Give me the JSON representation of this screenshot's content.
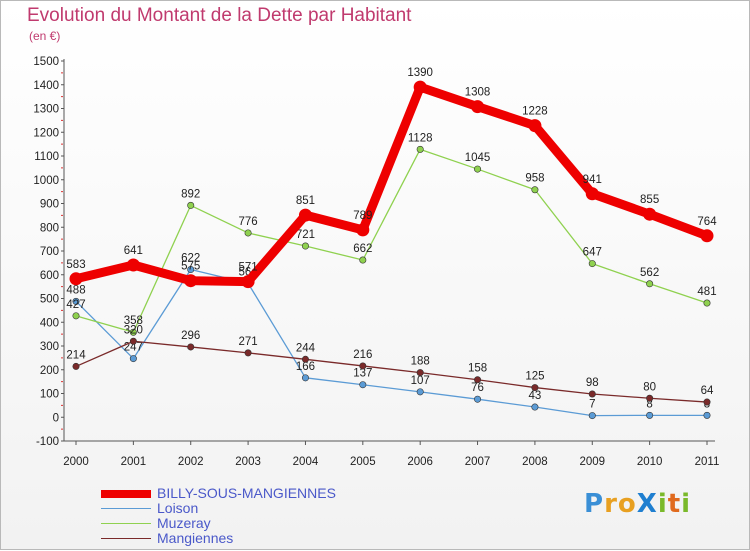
{
  "title": "Evolution du Montant de la Dette par Habitant",
  "unit_label": "(en €)",
  "logo": {
    "text": "ProXiti",
    "letters": [
      {
        "ch": "P",
        "color": "#3a8fd6"
      },
      {
        "ch": "r",
        "color": "#e8a021"
      },
      {
        "ch": "o",
        "color": "#e8a021"
      },
      {
        "ch": "X",
        "color": "#1f7fd0"
      },
      {
        "ch": "i",
        "color": "#7ab92a"
      },
      {
        "ch": "t",
        "color": "#e06a1e"
      },
      {
        "ch": "i",
        "color": "#7ab92a"
      }
    ]
  },
  "chart_data": {
    "type": "line",
    "title": "Evolution du Montant de la Dette par Habitant",
    "ylabel": "(en €)",
    "xlabel": "",
    "x": [
      "2000",
      "2001",
      "2002",
      "2003",
      "2004",
      "2005",
      "2006",
      "2007",
      "2008",
      "2009",
      "2010",
      "2011"
    ],
    "ylim": [
      -100,
      1500
    ],
    "yticks": [
      -100,
      0,
      100,
      200,
      300,
      400,
      500,
      600,
      700,
      800,
      900,
      1000,
      1100,
      1200,
      1300,
      1400,
      1500
    ],
    "grid": false,
    "legend_position": "bottom-left",
    "series": [
      {
        "name": "BILLY-SOUS-MANGIENNES",
        "color": "#ee0000",
        "bold": true,
        "values": [
          583,
          641,
          575,
          571,
          851,
          789,
          1390,
          1308,
          1228,
          941,
          855,
          764
        ]
      },
      {
        "name": "Loison",
        "color": "#5b9bd5",
        "bold": false,
        "values": [
          488,
          247,
          622,
          564,
          166,
          137,
          107,
          76,
          43,
          7,
          8,
          8
        ]
      },
      {
        "name": "Muzeray",
        "color": "#8fd14f",
        "bold": false,
        "values": [
          427,
          358,
          892,
          776,
          721,
          662,
          1128,
          1045,
          958,
          647,
          562,
          481
        ]
      },
      {
        "name": "Mangiennes",
        "color": "#7a2a2a",
        "bold": false,
        "values": [
          214,
          320,
          296,
          271,
          244,
          216,
          188,
          158,
          125,
          98,
          80,
          64
        ]
      }
    ]
  }
}
